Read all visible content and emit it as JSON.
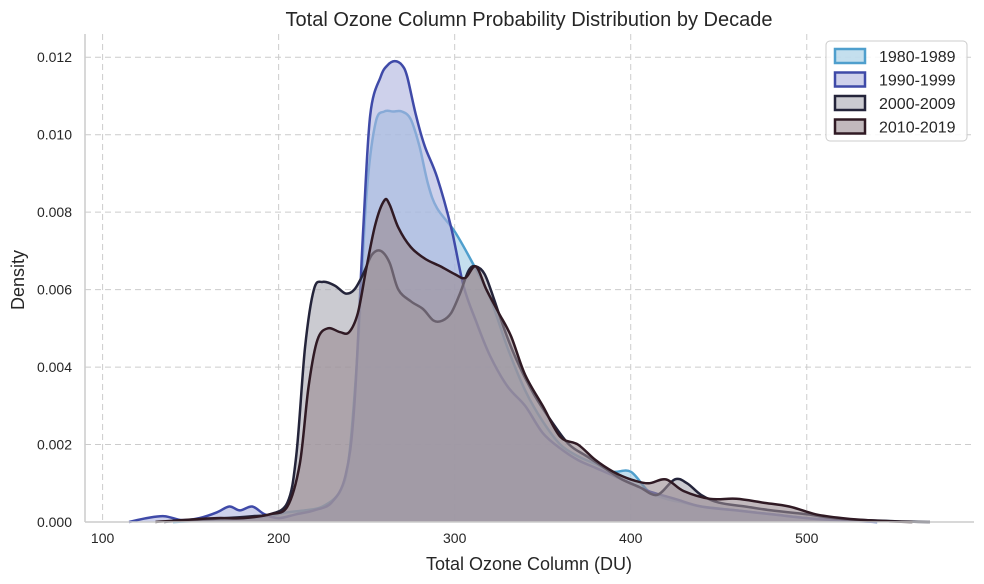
{
  "chart_data": {
    "type": "area",
    "title": "Total Ozone Column Probability Distribution by Decade",
    "xlabel": "Total Ozone Column (DU)",
    "ylabel": "Density",
    "xlim": [
      90,
      595
    ],
    "ylim": [
      0,
      0.0126
    ],
    "grid": true,
    "legend_position": "top-right",
    "x_ticks": [
      100,
      200,
      300,
      400,
      500
    ],
    "y_ticks": [
      0.0,
      0.002,
      0.004,
      0.006,
      0.008,
      0.01,
      0.012
    ],
    "x_tick_labels": [
      "100",
      "200",
      "300",
      "400",
      "500"
    ],
    "y_tick_labels": [
      "0.000",
      "0.002",
      "0.004",
      "0.006",
      "0.008",
      "0.010",
      "0.012"
    ],
    "series": [
      {
        "name": "1980-1989",
        "fill": "#9cc9e3",
        "stroke": "#4f9fcd",
        "points": [
          [
            140,
            0
          ],
          [
            165,
            5e-05
          ],
          [
            190,
            0.00012
          ],
          [
            205,
            0.00025
          ],
          [
            215,
            0.0003
          ],
          [
            225,
            0.0004
          ],
          [
            235,
            0.0008
          ],
          [
            240,
            0.0017
          ],
          [
            245,
            0.0045
          ],
          [
            250,
            0.0085
          ],
          [
            255,
            0.0103
          ],
          [
            260,
            0.0106
          ],
          [
            265,
            0.0106
          ],
          [
            270,
            0.0106
          ],
          [
            275,
            0.0104
          ],
          [
            280,
            0.0097
          ],
          [
            285,
            0.0087
          ],
          [
            290,
            0.0081
          ],
          [
            300,
            0.0075
          ],
          [
            310,
            0.0067
          ],
          [
            320,
            0.0058
          ],
          [
            330,
            0.0045
          ],
          [
            340,
            0.0034
          ],
          [
            350,
            0.0026
          ],
          [
            360,
            0.002
          ],
          [
            370,
            0.0017
          ],
          [
            380,
            0.0015
          ],
          [
            390,
            0.0013
          ],
          [
            400,
            0.0013
          ],
          [
            410,
            0.0008
          ],
          [
            420,
            0.0006
          ],
          [
            430,
            0.0005
          ],
          [
            440,
            0.0004
          ],
          [
            460,
            0.0003
          ],
          [
            480,
            0.0002
          ],
          [
            500,
            0.0001
          ],
          [
            520,
            5e-05
          ],
          [
            540,
            0
          ]
        ]
      },
      {
        "name": "1990-1999",
        "fill": "#aeb2de",
        "stroke": "#3f4aa8",
        "points": [
          [
            115,
            0
          ],
          [
            125,
            0.0001
          ],
          [
            135,
            0.00015
          ],
          [
            145,
            5e-05
          ],
          [
            155,
            0.0001
          ],
          [
            165,
            0.00025
          ],
          [
            172,
            0.0004
          ],
          [
            178,
            0.0003
          ],
          [
            185,
            0.0004
          ],
          [
            192,
            0.0002
          ],
          [
            200,
            0.0001
          ],
          [
            210,
            0.0002
          ],
          [
            220,
            0.0003
          ],
          [
            230,
            0.0005
          ],
          [
            238,
            0.0012
          ],
          [
            243,
            0.003
          ],
          [
            248,
            0.0075
          ],
          [
            252,
            0.0105
          ],
          [
            258,
            0.0115
          ],
          [
            262,
            0.0118
          ],
          [
            266,
            0.0119
          ],
          [
            270,
            0.0118
          ],
          [
            273,
            0.0115
          ],
          [
            278,
            0.0105
          ],
          [
            283,
            0.0097
          ],
          [
            290,
            0.0089
          ],
          [
            298,
            0.0076
          ],
          [
            305,
            0.0061
          ],
          [
            312,
            0.0052
          ],
          [
            320,
            0.0043
          ],
          [
            330,
            0.0035
          ],
          [
            340,
            0.003
          ],
          [
            350,
            0.0023
          ],
          [
            360,
            0.0019
          ],
          [
            370,
            0.0016
          ],
          [
            380,
            0.0014
          ],
          [
            390,
            0.0012
          ],
          [
            400,
            0.001
          ],
          [
            410,
            0.0008
          ],
          [
            425,
            0.0006
          ],
          [
            440,
            0.0004
          ],
          [
            460,
            0.0003
          ],
          [
            480,
            0.0002
          ],
          [
            500,
            0.0001
          ],
          [
            520,
            4e-05
          ],
          [
            540,
            0
          ]
        ]
      },
      {
        "name": "2000-2009",
        "fill": "#a9a9b3",
        "stroke": "#24243a",
        "points": [
          [
            135,
            0
          ],
          [
            150,
            5e-05
          ],
          [
            170,
            0.0001
          ],
          [
            185,
            0.00015
          ],
          [
            195,
            0.0002
          ],
          [
            205,
            0.0005
          ],
          [
            210,
            0.0017
          ],
          [
            215,
            0.0045
          ],
          [
            220,
            0.006
          ],
          [
            225,
            0.0062
          ],
          [
            232,
            0.0061
          ],
          [
            238,
            0.0059
          ],
          [
            243,
            0.006
          ],
          [
            248,
            0.0064
          ],
          [
            253,
            0.0069
          ],
          [
            258,
            0.007
          ],
          [
            263,
            0.0067
          ],
          [
            268,
            0.006
          ],
          [
            275,
            0.0057
          ],
          [
            282,
            0.0055
          ],
          [
            288,
            0.0052
          ],
          [
            293,
            0.0052
          ],
          [
            298,
            0.0054
          ],
          [
            303,
            0.0059
          ],
          [
            308,
            0.0065
          ],
          [
            312,
            0.0066
          ],
          [
            317,
            0.0064
          ],
          [
            322,
            0.0058
          ],
          [
            328,
            0.005
          ],
          [
            335,
            0.0042
          ],
          [
            345,
            0.0033
          ],
          [
            355,
            0.0026
          ],
          [
            365,
            0.002
          ],
          [
            375,
            0.0017
          ],
          [
            385,
            0.0014
          ],
          [
            395,
            0.0011
          ],
          [
            405,
            0.0009
          ],
          [
            415,
            0.0007
          ],
          [
            425,
            0.0011
          ],
          [
            432,
            0.001
          ],
          [
            440,
            0.0007
          ],
          [
            450,
            0.0005
          ],
          [
            465,
            0.0004
          ],
          [
            480,
            0.0003
          ],
          [
            500,
            0.0002
          ],
          [
            520,
            8e-05
          ],
          [
            550,
            2e-05
          ],
          [
            570,
            0
          ]
        ]
      },
      {
        "name": "2010-2019",
        "fill": "#9a8a91",
        "stroke": "#301a24",
        "points": [
          [
            130,
            0
          ],
          [
            145,
            5e-05
          ],
          [
            165,
            0.0001
          ],
          [
            180,
            0.0001
          ],
          [
            195,
            0.0002
          ],
          [
            205,
            0.0004
          ],
          [
            212,
            0.0015
          ],
          [
            217,
            0.0035
          ],
          [
            222,
            0.0047
          ],
          [
            228,
            0.005
          ],
          [
            235,
            0.0049
          ],
          [
            240,
            0.0049
          ],
          [
            245,
            0.0054
          ],
          [
            250,
            0.0066
          ],
          [
            255,
            0.0077
          ],
          [
            260,
            0.0083
          ],
          [
            263,
            0.0082
          ],
          [
            268,
            0.0076
          ],
          [
            275,
            0.0071
          ],
          [
            283,
            0.0068
          ],
          [
            292,
            0.0066
          ],
          [
            300,
            0.0064
          ],
          [
            306,
            0.0063
          ],
          [
            312,
            0.0066
          ],
          [
            318,
            0.006
          ],
          [
            325,
            0.0054
          ],
          [
            332,
            0.0048
          ],
          [
            340,
            0.0038
          ],
          [
            350,
            0.003
          ],
          [
            360,
            0.0022
          ],
          [
            370,
            0.002
          ],
          [
            380,
            0.0016
          ],
          [
            390,
            0.0013
          ],
          [
            400,
            0.0011
          ],
          [
            410,
            0.001
          ],
          [
            420,
            0.0011
          ],
          [
            430,
            0.0008
          ],
          [
            445,
            0.0006
          ],
          [
            460,
            0.0006
          ],
          [
            475,
            0.0005
          ],
          [
            490,
            0.0004
          ],
          [
            505,
            0.0002
          ],
          [
            520,
            0.0001
          ],
          [
            540,
            3e-05
          ],
          [
            560,
            0
          ]
        ]
      }
    ]
  }
}
